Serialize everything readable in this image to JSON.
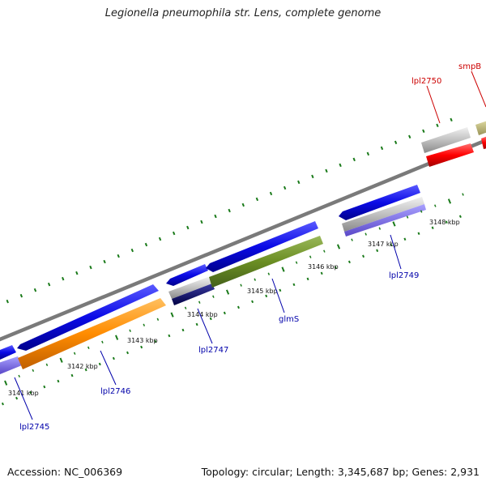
{
  "title": "Legionella pneumophila str. Lens, complete genome",
  "footer": {
    "accession": "Accession: NC_006369",
    "summary": "Topology: circular; Length: 3,345,687 bp; Genes: 2,931"
  },
  "tick_labels": [
    "3141 kbp",
    "3142 kbp",
    "3143 kbp",
    "3144 kbp",
    "3145 kbp",
    "3146 kbp",
    "3147 kbp",
    "3148 kbp"
  ],
  "gene_labels": [
    {
      "name": "lpl2745",
      "text": "lpl2745",
      "color": "#0000aa"
    },
    {
      "name": "lpl2746",
      "text": "lpl2746",
      "color": "#0000aa"
    },
    {
      "name": "lpl2747",
      "text": "lpl2747",
      "color": "#0000aa"
    },
    {
      "name": "glms",
      "text": "glmS",
      "color": "#0000aa"
    },
    {
      "name": "lpl2749",
      "text": "lpl2749",
      "color": "#0000aa"
    },
    {
      "name": "lpl2750",
      "text": "lpl2750",
      "color": "#cc0000"
    },
    {
      "name": "smpb",
      "text": "smpB",
      "color": "#cc0000"
    }
  ],
  "colors": {
    "cds_blue": "#0a0ae6",
    "orange": "#ff8c00",
    "olive": "#6b8e23",
    "navy": "#000066",
    "gray": "#c0c0c0",
    "purple": "#7b68ee",
    "red": "#ff0000",
    "khaki": "#bdb76b",
    "tick_green": "#1a7a1a",
    "backbone": "#808080"
  }
}
